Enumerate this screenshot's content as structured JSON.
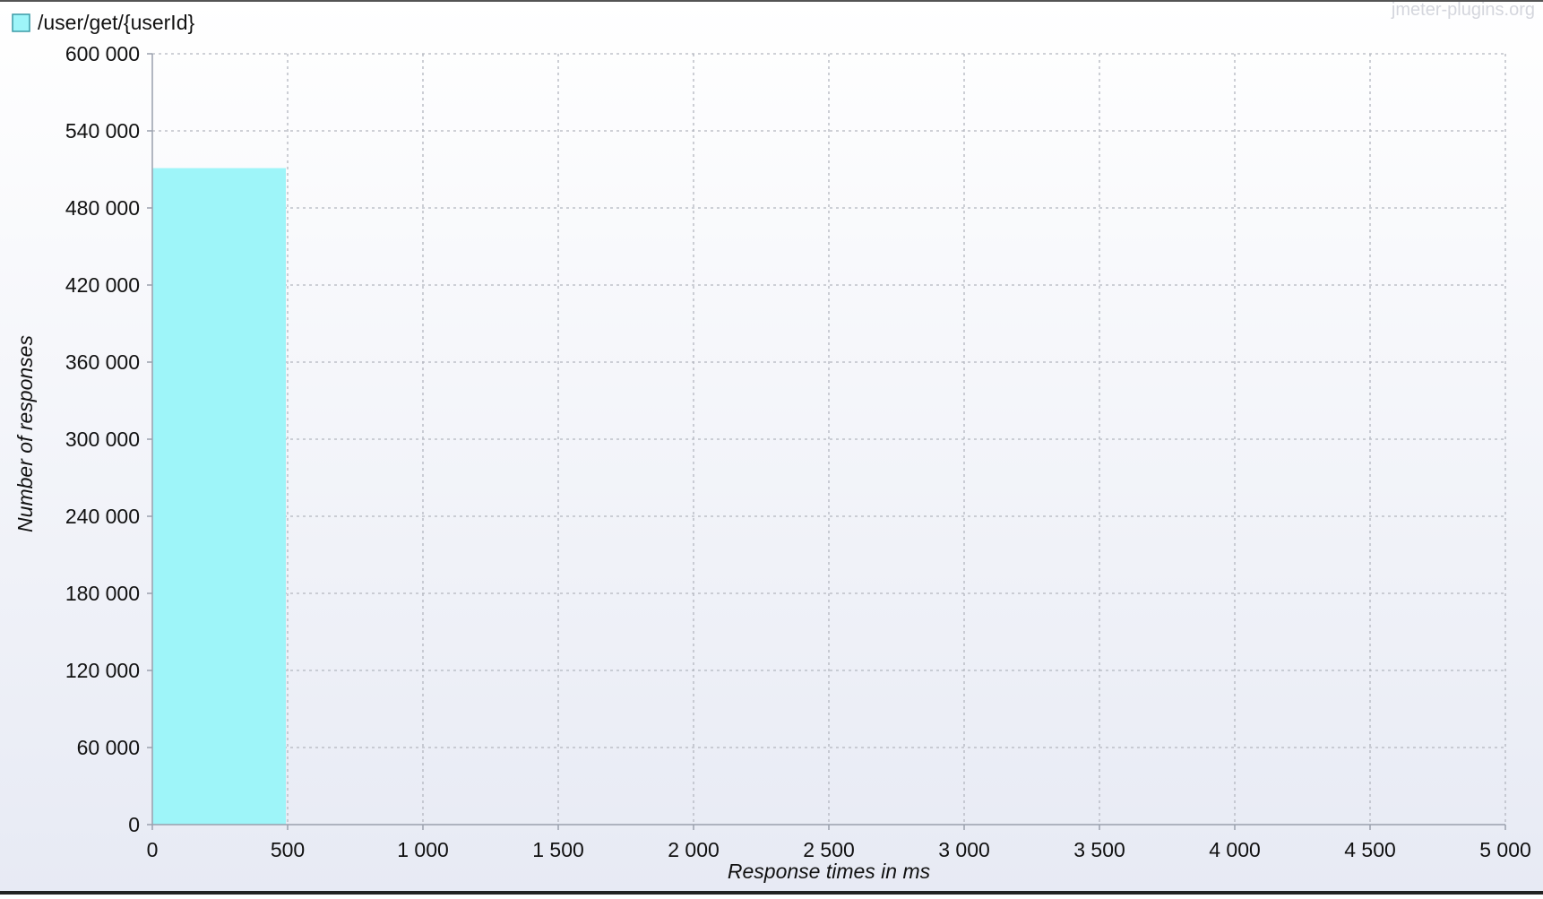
{
  "watermark": "jmeter-plugins.org",
  "chart_data": {
    "type": "bar",
    "title": "",
    "xlabel": "Response times in ms",
    "ylabel": "Number of responses",
    "legend": {
      "placement": "top-left"
    },
    "grid": true,
    "xlim": [
      0,
      5000
    ],
    "ylim": [
      0,
      600000
    ],
    "x_ticks": [
      0,
      500,
      1000,
      1500,
      2000,
      2500,
      3000,
      3500,
      4000,
      4500,
      5000
    ],
    "x_tick_labels": [
      "0",
      "500",
      "1 000",
      "1 500",
      "2 000",
      "2 500",
      "3 000",
      "3 500",
      "4 000",
      "4 500",
      "5 000"
    ],
    "y_ticks": [
      0,
      60000,
      120000,
      180000,
      240000,
      300000,
      360000,
      420000,
      480000,
      540000,
      600000
    ],
    "y_tick_labels": [
      "0",
      "60 000",
      "120 000",
      "180 000",
      "240 000",
      "300 000",
      "360 000",
      "420 000",
      "480 000",
      "540 000",
      "600 000"
    ],
    "series": [
      {
        "name": "/user/get/{userId}",
        "color": "#9ef5f9",
        "bins": [
          {
            "start": 0,
            "end": 500,
            "value": 511000
          }
        ]
      }
    ]
  }
}
